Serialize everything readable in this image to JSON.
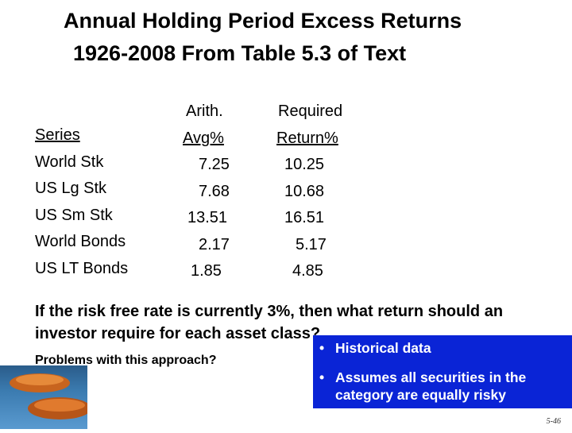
{
  "title": {
    "line1": "Annual Holding Period Excess Returns",
    "line2": "1926-2008 From Table 5.3 of Text"
  },
  "table": {
    "header_series": "Series",
    "header_arith_1": "Arith.",
    "header_arith_2": "Avg%",
    "header_req_1": "Required",
    "header_req_2": "Return%",
    "rows": [
      {
        "series": "World Stk",
        "arith": "7.25",
        "req": "10.25"
      },
      {
        "series": "US Lg Stk",
        "arith": "7.68",
        "req": "10.68"
      },
      {
        "series": "US Sm Stk",
        "arith": "13.51",
        "req": "16.51"
      },
      {
        "series": "World Bonds",
        "arith": "2.17",
        "req": "5.17"
      },
      {
        "series": "US LT Bonds",
        "arith": "1.85",
        "req": "4.85"
      }
    ]
  },
  "question": "If the risk free rate is currently 3%, then what return should an investor require for each asset class?",
  "problems": "Problems with this approach?",
  "blue_box": {
    "bullet1": "Historical data",
    "bullet2_line1": "Assumes all securities in the",
    "bullet2_line2": "category are equally risky"
  },
  "page_number": "5-46"
}
